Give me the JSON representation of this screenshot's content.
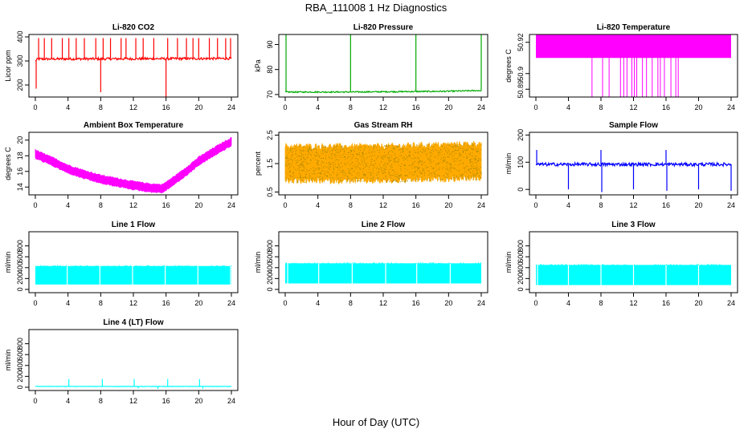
{
  "figure": {
    "title": "RBA_111008  1 Hz Diagnostics",
    "xlabel": "Hour of Day (UTC)"
  },
  "chart_data": [
    {
      "id": "co2",
      "type": "line",
      "title": "Li-820 CO2",
      "ylabel": "Licor ppm",
      "color": "#ff0000",
      "xlim": [
        0,
        24
      ],
      "xticks": [
        0,
        4,
        8,
        12,
        16,
        20,
        24
      ],
      "ylim": [
        150,
        410
      ],
      "yticks": [
        200,
        300,
        400
      ],
      "baseline": [
        [
          0,
          300
        ],
        [
          0.3,
          308
        ],
        [
          24,
          310
        ]
      ],
      "noise": 5,
      "spikes_up": [
        0.4,
        1.1,
        2.0,
        3.3,
        4.1,
        5.0,
        6.0,
        7.4,
        8.3,
        9.2,
        10.5,
        11.1,
        12.3,
        13.2,
        14.5,
        16.2,
        17.4,
        18.5,
        19.3,
        20.0,
        21.3,
        22.3,
        23.3,
        23.9
      ],
      "spike_up_to": 395,
      "spikes_down": [
        [
          0.1,
          185
        ],
        [
          8.0,
          170
        ],
        [
          16.0,
          150
        ]
      ]
    },
    {
      "id": "pressure",
      "type": "line",
      "title": "Li-820 Pressure",
      "ylabel": "kPa",
      "color": "#00aa00",
      "xlim": [
        0,
        24
      ],
      "xticks": [
        0,
        4,
        8,
        12,
        16,
        20,
        24
      ],
      "ylim": [
        69,
        94
      ],
      "yticks": [
        70,
        80,
        90
      ],
      "baseline": [
        [
          0,
          71.0
        ],
        [
          8,
          71.0
        ],
        [
          16,
          71.2
        ],
        [
          20,
          71.3
        ],
        [
          24,
          71.6
        ]
      ],
      "noise": 0.25,
      "spikes_up": [
        0.1,
        8.0,
        16.0,
        24.0
      ],
      "spike_up_to": 94
    },
    {
      "id": "licor_temp",
      "type": "band",
      "title": "Li-820 Temperature",
      "ylabel": "degrees C",
      "color": "#ff00ff",
      "xlim": [
        0,
        24
      ],
      "xticks": [
        0,
        4,
        8,
        12,
        16,
        20,
        24
      ],
      "ylim": [
        50.885,
        50.925
      ],
      "yticks": [
        50.89,
        50.9,
        50.92
      ],
      "band_low": 50.91,
      "band_high": 50.925,
      "dips": [
        6.9,
        8.2,
        9.0,
        10.4,
        10.8,
        11.2,
        11.8,
        12.1,
        12.4,
        13.1,
        13.6,
        14.3,
        15.0,
        15.3,
        15.8,
        16.6,
        17.2,
        17.5
      ],
      "dip_to": 50.885
    },
    {
      "id": "ambient_temp",
      "type": "band",
      "title": "Ambient Box Temperature",
      "ylabel": "degrees C",
      "color": "#ff00ff",
      "xlim": [
        0,
        24
      ],
      "xticks": [
        0,
        4,
        8,
        12,
        16,
        20,
        24
      ],
      "ylim": [
        13,
        21
      ],
      "yticks": [
        14,
        16,
        18,
        20
      ],
      "center": [
        [
          0,
          18.2
        ],
        [
          2,
          17.3
        ],
        [
          4,
          16.3
        ],
        [
          6,
          15.6
        ],
        [
          8,
          15.0
        ],
        [
          10,
          14.6
        ],
        [
          12,
          14.2
        ],
        [
          14,
          13.9
        ],
        [
          15.5,
          13.8
        ],
        [
          16,
          14.1
        ],
        [
          18,
          15.6
        ],
        [
          20,
          17.3
        ],
        [
          22,
          18.6
        ],
        [
          24,
          19.8
        ]
      ],
      "halfwidth": 0.55
    },
    {
      "id": "rh",
      "type": "band",
      "title": "Gas Stream RH",
      "ylabel": "percent",
      "color": "#ffaa00",
      "xlim": [
        0,
        24
      ],
      "xticks": [
        0,
        4,
        8,
        12,
        16,
        20,
        24
      ],
      "ylim": [
        0.4,
        2.6
      ],
      "yticks": [
        0.5,
        1.5,
        2.5
      ],
      "center": [
        [
          0,
          1.5
        ],
        [
          12,
          1.5
        ],
        [
          24,
          1.6
        ]
      ],
      "halfwidth": 0.65,
      "dots": "#aa8800"
    },
    {
      "id": "sample_flow",
      "type": "line",
      "title": "Sample Flow",
      "ylabel": "ml/min",
      "color": "#0000ff",
      "xlim": [
        0,
        24
      ],
      "xticks": [
        0,
        4,
        8,
        12,
        16,
        20,
        24
      ],
      "ylim": [
        -20,
        210
      ],
      "yticks": [
        0,
        100,
        200
      ],
      "baseline": [
        [
          0,
          92
        ],
        [
          24,
          92
        ]
      ],
      "noise": 6,
      "spikes_up": [
        0.1,
        8.0,
        16.0
      ],
      "spike_up_to": 145,
      "spikes_down": [
        [
          4.0,
          0
        ],
        [
          8.1,
          -10
        ],
        [
          12.0,
          0
        ],
        [
          16.1,
          -5
        ],
        [
          20.0,
          0
        ],
        [
          24.0,
          -5
        ]
      ]
    },
    {
      "id": "line1",
      "type": "band",
      "title": "Line 1 Flow",
      "ylabel": "ml/min",
      "color": "#00ffff",
      "xlim": [
        0,
        24
      ],
      "xticks": [
        0,
        4,
        8,
        12,
        16,
        20,
        24
      ],
      "ylim": [
        -60,
        1060
      ],
      "yticks": [
        0,
        200,
        400,
        600,
        800
      ],
      "band_low": 90,
      "band_high": 430,
      "gaps": [
        3.9,
        7.9,
        11.9,
        15.9,
        19.9,
        23.9
      ]
    },
    {
      "id": "line2",
      "type": "band",
      "title": "Line 2 Flow",
      "ylabel": "ml/min",
      "color": "#00ffff",
      "xlim": [
        0,
        24
      ],
      "xticks": [
        0,
        4,
        8,
        12,
        16,
        20,
        24
      ],
      "ylim": [
        -60,
        1060
      ],
      "yticks": [
        0,
        200,
        400,
        600,
        800
      ],
      "band_low": 110,
      "band_high": 480,
      "gaps": [
        0.3,
        4.1,
        8.2,
        12.3,
        16.1,
        20.2
      ]
    },
    {
      "id": "line3",
      "type": "band",
      "title": "Line 3 Flow",
      "ylabel": "ml/min",
      "color": "#00ffff",
      "xlim": [
        0,
        24
      ],
      "xticks": [
        0,
        4,
        8,
        12,
        16,
        20,
        24
      ],
      "ylim": [
        -60,
        1060
      ],
      "yticks": [
        0,
        200,
        400,
        600,
        800
      ],
      "band_low": 80,
      "band_high": 450,
      "gaps": [
        0.2,
        4.0,
        8.0,
        12.0,
        16.0,
        20.0
      ]
    },
    {
      "id": "line4",
      "type": "line",
      "title": "Line 4 (LT) Flow",
      "ylabel": "ml/min",
      "color": "#00ffff",
      "xlim": [
        0,
        24
      ],
      "xticks": [
        0,
        4,
        8,
        12,
        16,
        20,
        24
      ],
      "ylim": [
        -60,
        1060
      ],
      "yticks": [
        0,
        200,
        400,
        600,
        800
      ],
      "baseline": [
        [
          0,
          15
        ],
        [
          24,
          15
        ]
      ],
      "noise": 4,
      "spikes_up": [
        4.1,
        8.2,
        12.1,
        16.2,
        20.1
      ],
      "spike_up_to": 150,
      "spikes_down": [
        [
          12.6,
          -20
        ],
        [
          15.0,
          -30
        ],
        [
          20.5,
          -25
        ]
      ]
    }
  ]
}
